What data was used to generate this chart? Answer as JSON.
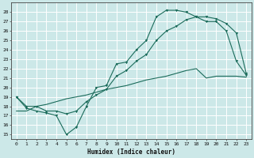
{
  "title": "",
  "xlabel": "Humidex (Indice chaleur)",
  "bg_color": "#cce8e8",
  "grid_color": "#ffffff",
  "line_color": "#1a6b5a",
  "xlim": [
    -0.5,
    23.5
  ],
  "ylim": [
    14.5,
    29.0
  ],
  "xticks": [
    0,
    1,
    2,
    3,
    4,
    5,
    6,
    7,
    8,
    9,
    10,
    11,
    12,
    13,
    14,
    15,
    16,
    17,
    18,
    19,
    20,
    21,
    22,
    23
  ],
  "yticks": [
    15,
    16,
    17,
    18,
    19,
    20,
    21,
    22,
    23,
    24,
    25,
    26,
    27,
    28
  ],
  "curve1_x": [
    0,
    1,
    2,
    3,
    4,
    5,
    6,
    7,
    8,
    9,
    10,
    11,
    12,
    13,
    14,
    15,
    16,
    17,
    18,
    19,
    20,
    21,
    22,
    23
  ],
  "curve1_y": [
    19.0,
    17.8,
    17.5,
    17.3,
    17.0,
    15.0,
    15.8,
    18.0,
    20.0,
    20.2,
    22.5,
    22.7,
    24.0,
    25.0,
    27.5,
    28.2,
    28.2,
    28.0,
    27.5,
    27.0,
    27.0,
    26.0,
    22.8,
    21.3
  ],
  "curve2_x": [
    0,
    1,
    2,
    3,
    4,
    5,
    6,
    7,
    8,
    9,
    10,
    11,
    12,
    13,
    14,
    15,
    16,
    17,
    18,
    19,
    20,
    21,
    22,
    23
  ],
  "curve2_y": [
    19.0,
    18.0,
    18.0,
    17.5,
    17.5,
    17.2,
    17.5,
    18.5,
    19.2,
    19.8,
    21.2,
    21.8,
    22.8,
    23.5,
    25.0,
    26.0,
    26.5,
    27.2,
    27.5,
    27.5,
    27.3,
    26.8,
    25.8,
    21.5
  ],
  "curve3_x": [
    0,
    1,
    2,
    3,
    4,
    5,
    6,
    7,
    8,
    9,
    10,
    11,
    12,
    13,
    14,
    15,
    16,
    17,
    18,
    19,
    20,
    21,
    22,
    23
  ],
  "curve3_y": [
    17.5,
    17.5,
    18.0,
    18.2,
    18.5,
    18.8,
    19.0,
    19.2,
    19.5,
    19.8,
    20.0,
    20.2,
    20.5,
    20.8,
    21.0,
    21.2,
    21.5,
    21.8,
    22.0,
    21.0,
    21.2,
    21.2,
    21.2,
    21.1
  ]
}
